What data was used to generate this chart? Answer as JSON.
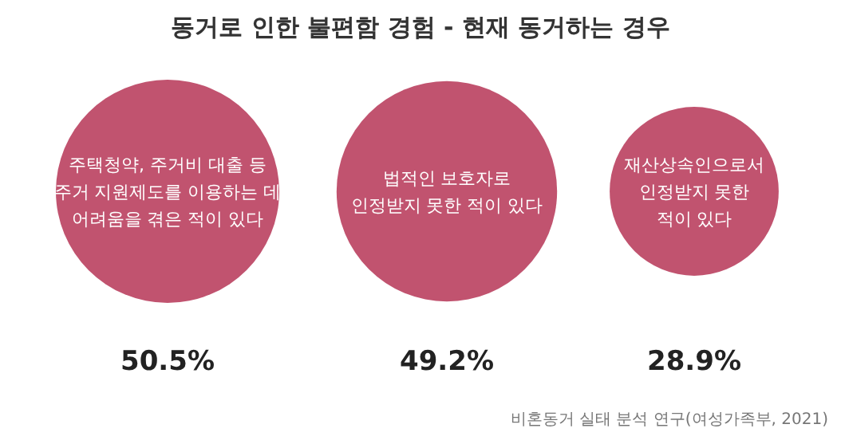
{
  "chart_data": {
    "type": "other",
    "title": "동거로 인한 불편함 경험 - 현재 동거하는 경우",
    "categories": [
      "주택청약, 주거비 대출 등\n주거 지원제도를 이용하는 데\n어려움을 겪은 적이 있다",
      "법적인 보호자로\n인정받지 못한 적이 있다",
      "재산상속인으로서\n인정받지 못한\n적이 있다"
    ],
    "values": [
      50.5,
      49.2,
      28.9
    ],
    "value_labels": [
      "50.5%",
      "49.2%",
      "28.9%"
    ],
    "colors": [
      "#c1536f",
      "#c1536f",
      "#c1536f"
    ],
    "annotations": [
      "비혼동거 실태 분석 연구(여성가족부, 2021)"
    ]
  }
}
